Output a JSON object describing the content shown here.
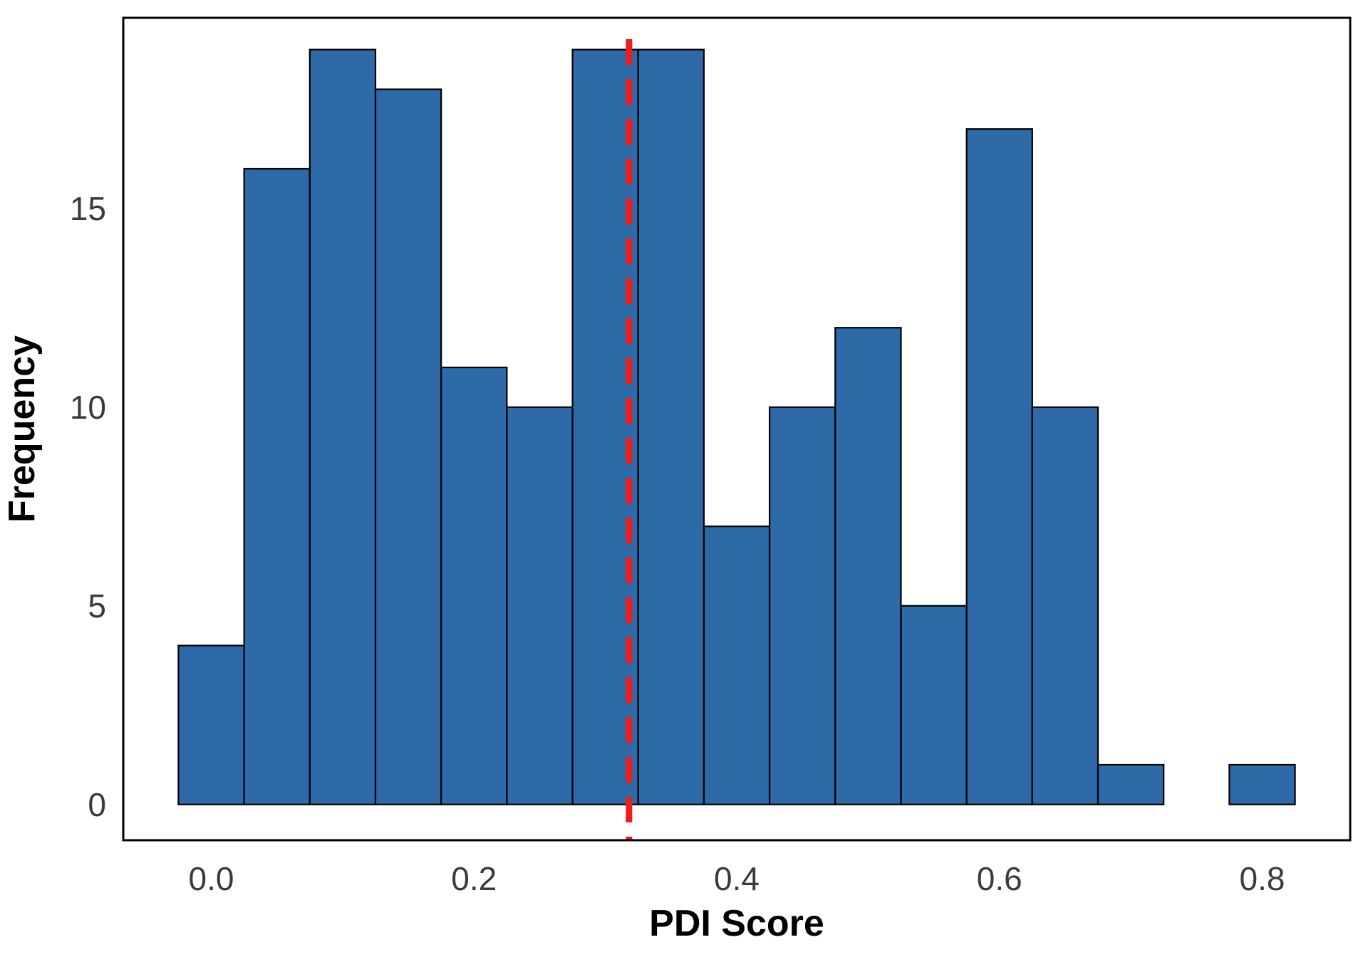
{
  "chart_data": {
    "type": "bar",
    "subtype": "histogram",
    "xlabel": "PDI Score",
    "ylabel": "Frequency",
    "bin_width": 0.05,
    "bins": [
      {
        "start": -0.025,
        "end": 0.025,
        "count": 4
      },
      {
        "start": 0.025,
        "end": 0.075,
        "count": 16
      },
      {
        "start": 0.075,
        "end": 0.125,
        "count": 19
      },
      {
        "start": 0.125,
        "end": 0.175,
        "count": 18
      },
      {
        "start": 0.175,
        "end": 0.225,
        "count": 11
      },
      {
        "start": 0.225,
        "end": 0.275,
        "count": 10
      },
      {
        "start": 0.275,
        "end": 0.325,
        "count": 19
      },
      {
        "start": 0.325,
        "end": 0.375,
        "count": 19
      },
      {
        "start": 0.375,
        "end": 0.425,
        "count": 7
      },
      {
        "start": 0.425,
        "end": 0.475,
        "count": 10
      },
      {
        "start": 0.475,
        "end": 0.525,
        "count": 12
      },
      {
        "start": 0.525,
        "end": 0.575,
        "count": 5
      },
      {
        "start": 0.575,
        "end": 0.625,
        "count": 17
      },
      {
        "start": 0.625,
        "end": 0.675,
        "count": 10
      },
      {
        "start": 0.675,
        "end": 0.725,
        "count": 1
      },
      {
        "start": 0.725,
        "end": 0.775,
        "count": 0
      },
      {
        "start": 0.775,
        "end": 0.825,
        "count": 1
      }
    ],
    "reference_line": {
      "x": 0.318,
      "style": "dashed",
      "color": "#ee1c1c"
    },
    "xlim": [
      -0.067,
      0.867
    ],
    "ylim": [
      -0.9,
      19.8
    ],
    "xticks": [
      0.0,
      0.2,
      0.4,
      0.6,
      0.8
    ],
    "xtick_labels": [
      "0.0",
      "0.2",
      "0.4",
      "0.6",
      "0.8"
    ],
    "yticks": [
      0,
      5,
      10,
      15
    ],
    "ytick_labels": [
      "0",
      "5",
      "10",
      "15"
    ],
    "grid": false,
    "legend": "none",
    "colors": {
      "bar_fill": "#2e69a8",
      "bar_edge": "#000000",
      "frame": "#000000"
    }
  }
}
